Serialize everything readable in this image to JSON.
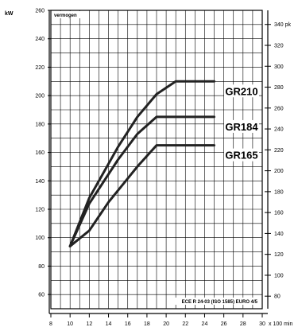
{
  "chart_data": {
    "type": "line",
    "title": "vermogen",
    "left_unit": "kW",
    "right_unit": "pk",
    "xlabel": "x 100 min",
    "note": "ECE R 24-03 (ISO 1585) EURO 4/5",
    "xlim": [
      8,
      30
    ],
    "ylim": [
      50,
      260
    ],
    "x_ticks": [
      8,
      10,
      12,
      14,
      16,
      18,
      20,
      22,
      24,
      26,
      28,
      30
    ],
    "y_ticks": [
      60,
      80,
      100,
      120,
      140,
      160,
      180,
      200,
      220,
      240,
      260
    ],
    "right_ticks": [
      80,
      100,
      120,
      140,
      160,
      180,
      200,
      220,
      240,
      260,
      280,
      300,
      320,
      340
    ],
    "grid": true,
    "series": [
      {
        "name": "GR210",
        "x": [
          10,
          12,
          15,
          17,
          19,
          21,
          25
        ],
        "y": [
          94,
          128,
          164,
          185,
          201,
          210,
          210
        ]
      },
      {
        "name": "GR184",
        "x": [
          10,
          12,
          15,
          17,
          19,
          25
        ],
        "y": [
          94,
          124,
          155,
          173,
          185,
          185
        ]
      },
      {
        "name": "GR165",
        "x": [
          10,
          12,
          14,
          17,
          19,
          25
        ],
        "y": [
          94,
          105,
          125,
          150,
          165,
          165
        ]
      }
    ]
  }
}
